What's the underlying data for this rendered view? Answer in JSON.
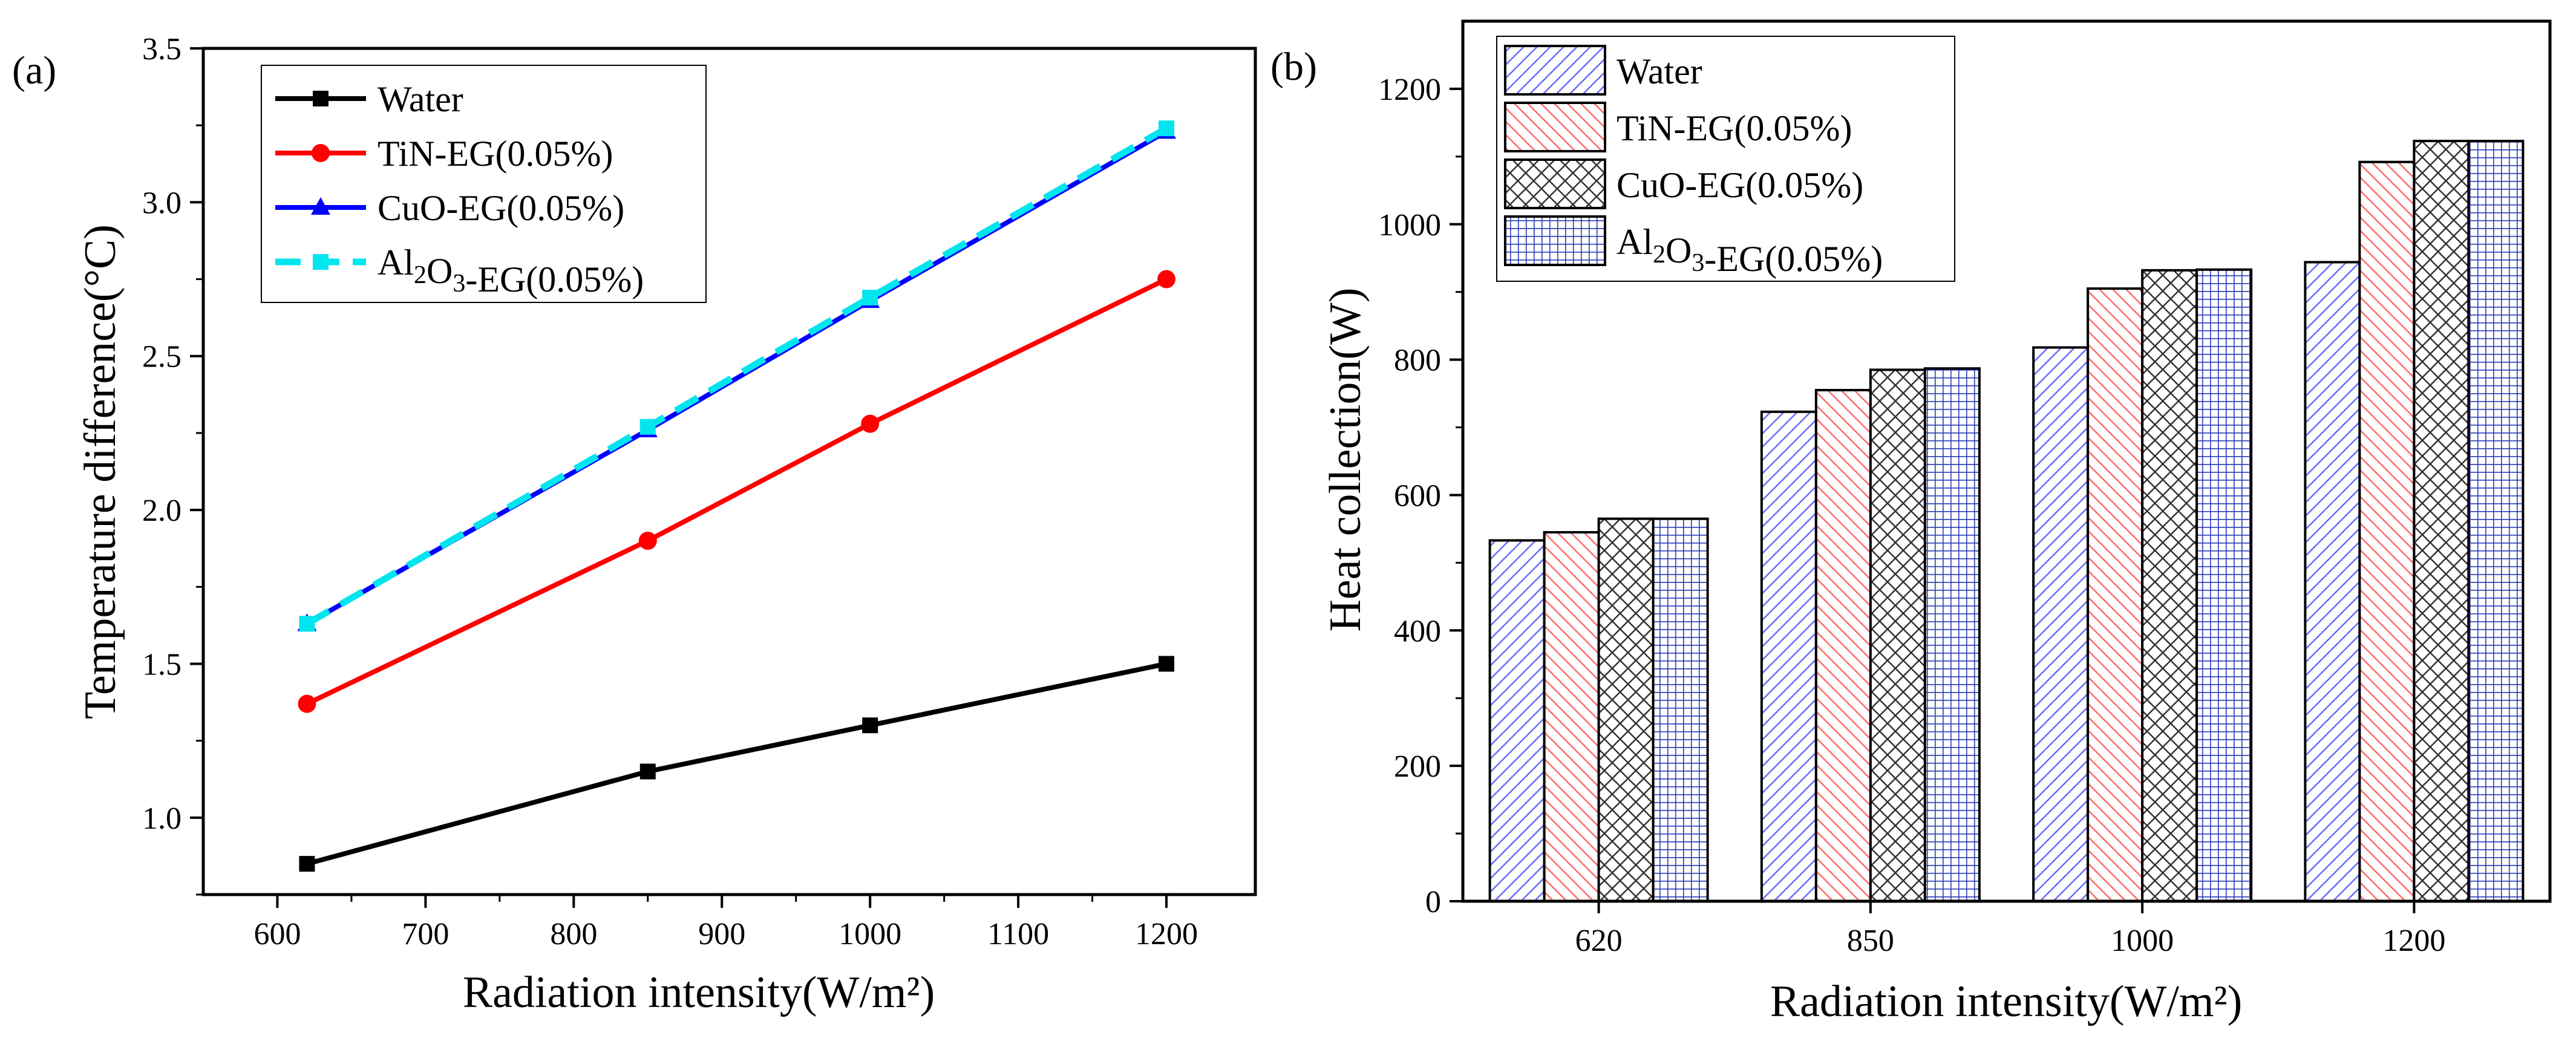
{
  "chart_data": [
    {
      "panel": "(a)",
      "type": "line",
      "xlabel": "Radiation intensity(W/m²)",
      "ylabel": "Temperature difference(°C)",
      "x": [
        620,
        850,
        1000,
        1200
      ],
      "xlim": [
        550,
        1260
      ],
      "ylim": [
        0.75,
        3.5
      ],
      "xticks": [
        "600",
        "700",
        "800",
        "900",
        "1000",
        "1100",
        "1200"
      ],
      "yticks": [
        "1.0",
        "1.5",
        "2.0",
        "2.5",
        "3.0",
        "3.5"
      ],
      "legend_position": "top-left",
      "series": [
        {
          "name": "Water",
          "values": [
            0.85,
            1.15,
            1.3,
            1.5
          ],
          "color": "#000000",
          "marker": "square",
          "dash": "solid"
        },
        {
          "name": "TiN-EG(0.05%)",
          "values": [
            1.37,
            1.9,
            2.28,
            2.75
          ],
          "color": "#ff0000",
          "marker": "circle",
          "dash": "solid"
        },
        {
          "name": "CuO-EG(0.05%)",
          "values": [
            1.63,
            2.26,
            2.68,
            3.23
          ],
          "color": "#0000ff",
          "marker": "triangle",
          "dash": "solid"
        },
        {
          "name": "Al2O3-EG(0.05%)",
          "values": [
            1.63,
            2.27,
            2.69,
            3.24
          ],
          "color": "#00e5ee",
          "marker": "square",
          "dash": "dashed"
        }
      ]
    },
    {
      "panel": "(b)",
      "type": "bar",
      "xlabel": "Radiation intensity(W/m²)",
      "ylabel": "Heat collection(W)",
      "categories": [
        "620",
        "850",
        "1000",
        "1200"
      ],
      "ylim": [
        0,
        1300
      ],
      "yticks": [
        "0",
        "200",
        "400",
        "600",
        "800",
        "1000",
        "1200"
      ],
      "legend_position": "top-left",
      "series": [
        {
          "name": "Water",
          "values": [
            533,
            723,
            818,
            944
          ],
          "color": "#6a6aff",
          "hatch": "forward-diagonal"
        },
        {
          "name": "TiN-EG(0.05%)",
          "values": [
            545,
            755,
            905,
            1092
          ],
          "color": "#ff6a6a",
          "hatch": "back-diagonal"
        },
        {
          "name": "CuO-EG(0.05%)",
          "values": [
            565,
            785,
            932,
            1123
          ],
          "color": "#333333",
          "hatch": "cross"
        },
        {
          "name": "Al2O3-EG(0.05%)",
          "values": [
            565,
            787,
            933,
            1123
          ],
          "color": "#2a3cb8",
          "hatch": "grid"
        }
      ]
    }
  ]
}
